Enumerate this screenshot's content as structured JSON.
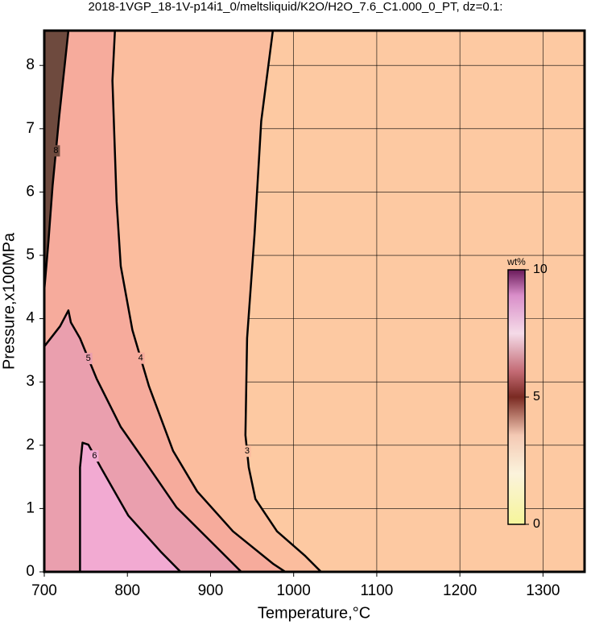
{
  "chart_data": {
    "type": "contour",
    "title": "2018-1VGP_18-1V-p14i1_0/meltsliquid/K2O/H2O_7.6_C1.000_0_PT, dz=0.1:",
    "x_label": "Temperature,°C",
    "y_label": "Pressure,x100MPa",
    "xlim": [
      700,
      1350
    ],
    "ylim": [
      0,
      8.55
    ],
    "xticks": [
      700,
      800,
      900,
      1000,
      1100,
      1200,
      1300
    ],
    "yticks": [
      0,
      1,
      2,
      3,
      4,
      5,
      6,
      7,
      8
    ],
    "grid": true,
    "background_color": "#fdc9a2",
    "contours": [
      {
        "level": 3,
        "color": "#fbbd9e",
        "x": [
          975,
          961,
          953,
          944,
          942,
          946,
          954,
          980,
          1014,
          1033
        ],
        "y": [
          8.55,
          7.12,
          5.34,
          3.69,
          2.16,
          1.65,
          1.15,
          0.64,
          0.25,
          0
        ]
      },
      {
        "level": 4,
        "color": "#f6ab9c",
        "x": [
          785,
          782,
          787,
          792,
          806,
          826,
          855,
          884,
          927,
          975,
          990
        ],
        "y": [
          8.55,
          7.76,
          5.85,
          4.83,
          3.82,
          2.93,
          1.91,
          1.27,
          0.64,
          0.13,
          0
        ]
      },
      {
        "level": 5,
        "color": "#ea9fae",
        "x": [
          700,
          719,
          729,
          732,
          743,
          763,
          792,
          826,
          859,
          908,
          937
        ],
        "y": [
          3.56,
          3.88,
          4.13,
          3.94,
          3.69,
          3.05,
          2.29,
          1.65,
          1.02,
          0.38,
          0
        ]
      },
      {
        "level": 6,
        "color": "#f2aad2",
        "x": [
          743,
          743,
          746,
          753,
          768,
          801,
          840,
          864
        ],
        "y": [
          0,
          1.65,
          2.04,
          2.01,
          1.65,
          0.89,
          0.32,
          0
        ]
      },
      {
        "level": 8,
        "color": "#6e4a3e",
        "x": [
          729,
          718,
          710,
          705,
          700
        ],
        "y": [
          8.55,
          7.2,
          6.1,
          5.22,
          4.45
        ]
      }
    ],
    "colorbar": {
      "label": "wt%",
      "lim": [
        0,
        10
      ],
      "ticks": [
        0,
        5,
        10
      ]
    }
  }
}
